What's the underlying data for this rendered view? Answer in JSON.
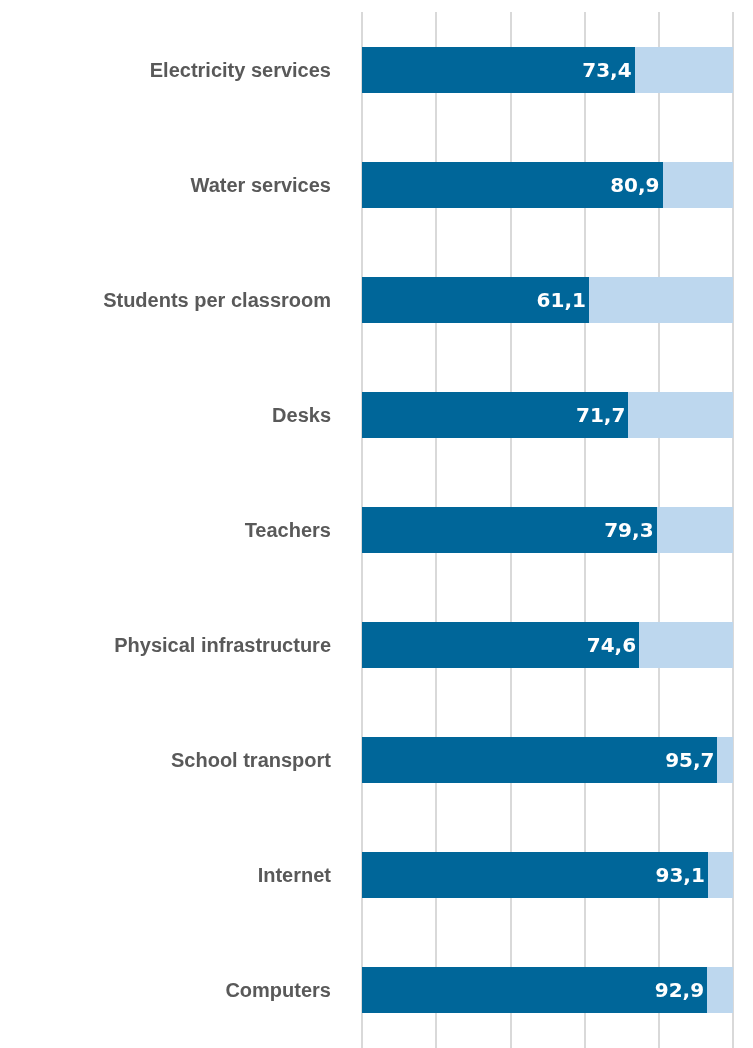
{
  "chart_data": {
    "type": "bar",
    "orientation": "horizontal",
    "stacked": true,
    "categories": [
      "Electricity services",
      "Water services",
      "Students per classroom",
      "Desks",
      "Teachers",
      "Physical infrastructure",
      "School transport",
      "Internet",
      "Computers"
    ],
    "series": [
      {
        "color": "#006699",
        "values": [
          73.4,
          80.9,
          61.1,
          71.7,
          79.3,
          74.6,
          95.7,
          93.1,
          92.9
        ],
        "value_labels": [
          "73,4",
          "80,9",
          "61,1",
          "71,7",
          "79,3",
          "74,6",
          "95,7",
          "93,1",
          "92,9"
        ]
      },
      {
        "color": "#bdd7ee",
        "values": [
          26.6,
          19.1,
          38.9,
          28.3,
          20.7,
          25.4,
          4.3,
          6.9,
          7.1
        ]
      }
    ],
    "grid": "x",
    "tick_labels": "y"
  }
}
